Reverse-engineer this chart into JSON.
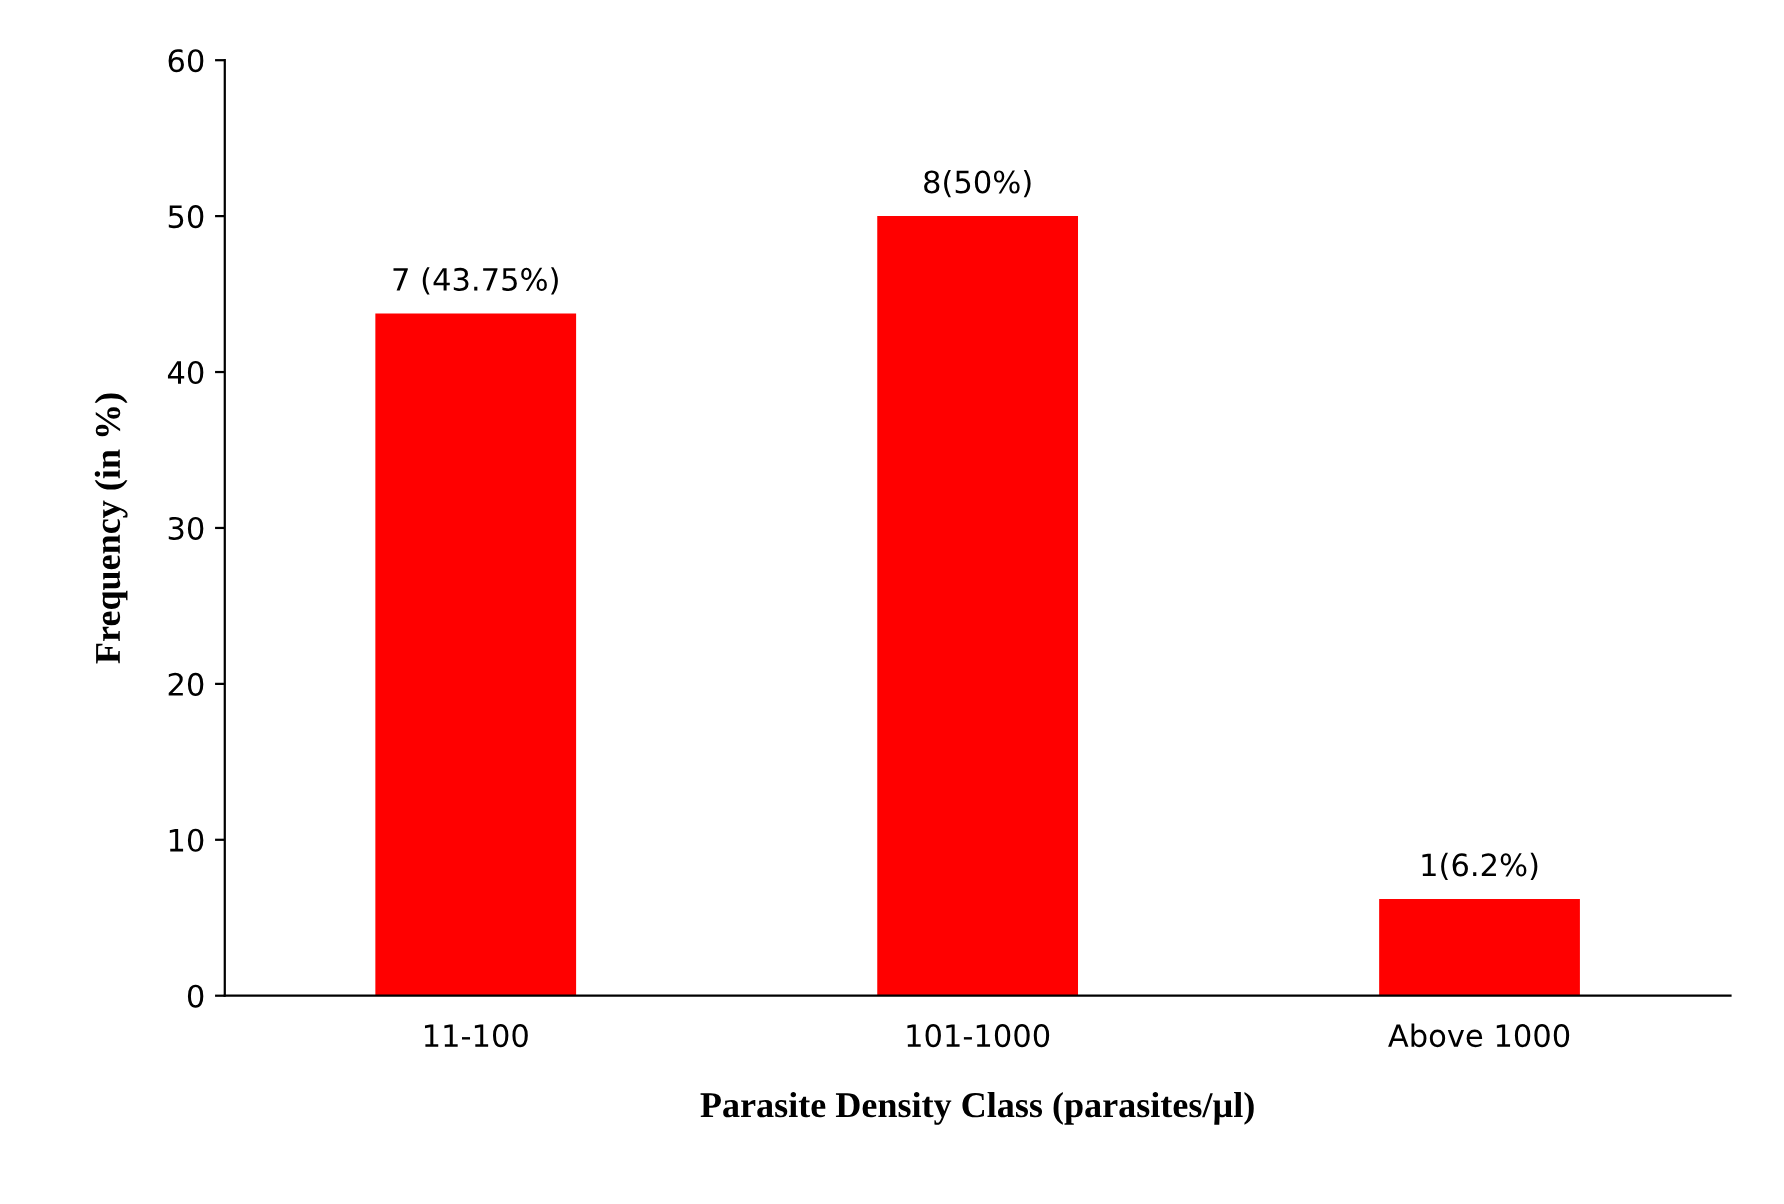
{
  "chart_data": {
    "type": "bar",
    "xlabel": "Parasite Density Class (parasites/µl)",
    "ylabel": "Frequency (in %)",
    "categories": [
      "11-100",
      "101-1000",
      "Above 1000"
    ],
    "values": [
      43.75,
      50,
      6.2
    ],
    "value_labels": [
      "7 (43.75%)",
      "8(50%)",
      "1(6.2%)"
    ],
    "color": "#ff0000",
    "ylim": [
      0,
      60
    ],
    "yticks": [
      0,
      10,
      20,
      30,
      40,
      50,
      60
    ],
    "grid": false,
    "legend": false
  }
}
